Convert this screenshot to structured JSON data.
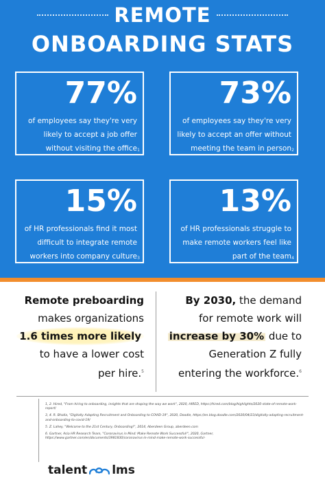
{
  "header": {
    "title_line1": "REMOTE",
    "title_line2": "ONBOARDING STATS"
  },
  "cards": [
    {
      "percent": "77%",
      "line1": "of employees say they're very",
      "line2": "likely to accept a job offer",
      "line3": "without visiting the office",
      "ref": "1"
    },
    {
      "percent": "73%",
      "line1": "of employees say they're very",
      "line2": "likely to accept an offer without",
      "line3": "meeting  the team in person",
      "ref": "2"
    },
    {
      "percent": "15%",
      "line1": "of HR professionals find it most",
      "line2": "difficult to integrate remote",
      "line3": "workers into company culture",
      "ref": "3"
    },
    {
      "percent": "13%",
      "line1": "of HR professionals struggle to",
      "line2": "make remote workers feel like",
      "line3": "part of the team",
      "ref": "4"
    }
  ],
  "stat_left": {
    "bold1": "Remote preboarding",
    "line2": "makes organizations",
    "highlight": "1.6 times more likely",
    "line4": "to have a lower cost",
    "line5": "per hire.",
    "ref": "5"
  },
  "stat_right": {
    "bold1": "By 2030,",
    "rest1": " the demand",
    "line2": "for remote work will",
    "highlight": "increase by 30%",
    "rest3": " due to",
    "line4": "Generation Z fully",
    "line5": "entering the workforce.",
    "ref": "6"
  },
  "references": [
    "1, 2. Hired, \"From hiring to onboarding, insights that are shaping the way we work\", 2020, HIRED, https://hired.com/blog/highlights/2020-state-of-remote-work-report/",
    "3, 4. R. Bhalla, \"Digitally Adapting Recruitment and Onboarding to COVID-19\", 2020, Doodle, https://en.blog.doodle.com/2020/04/23/digitally-adapting-recruitment-and-onboarding-to-covid-19/",
    "5. Z. Lahey, \"Welcome to the 21st Century, Onboarding!\", 2014, Aberdeen Group, aberdeen.com",
    "6. Gartner, Asia HR Research Team, \"Coronavirus in Mind: Make Remote Work Successful!\", 2020, Gartner, https://www.gartner.com/en/documents/3981830/coronavirus-in-mind-make-remote-work-successful-"
  ],
  "logo": {
    "left": "talent",
    "right": "lms"
  },
  "colors": {
    "brand_blue": "#1f7ed7",
    "accent_orange": "#f28d2c",
    "highlight": "#fff1aa"
  },
  "icons": {
    "logo_mark": "clouds-icon"
  }
}
